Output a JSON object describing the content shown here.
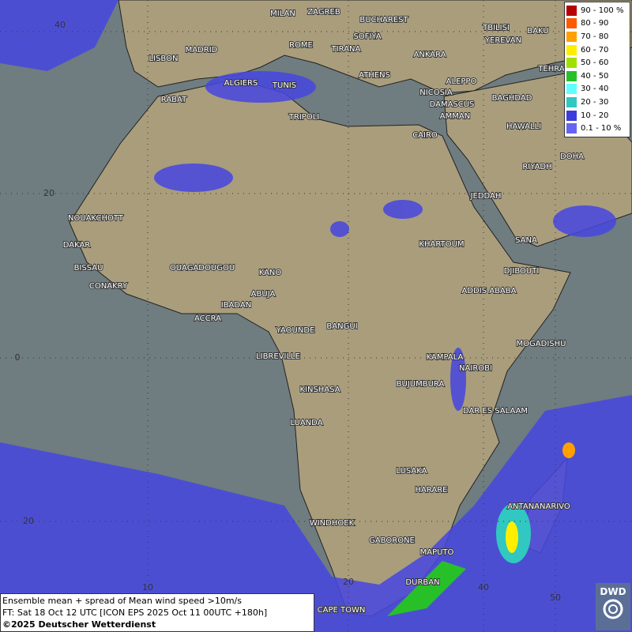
{
  "map": {
    "cities": [
      "MILAN",
      "ZAGREB",
      "BUCHAREST",
      "SOFIYA",
      "ROME",
      "TIRANA",
      "ANKARA",
      "MADRID",
      "LISBON",
      "ATHENS",
      "ALGIERS",
      "TUNIS",
      "ALEPPO",
      "TBILISI",
      "YEREVAN",
      "BAKU",
      "TEHRA",
      "RABAT",
      "NICOSIA",
      "BAGHDAD",
      "DAMASCUS",
      "TRIPOLI",
      "AMMAN",
      "HAWALLI",
      "CAIRO",
      "DOHA",
      "RIYADH",
      "JEDDAH",
      "NOUAKCHOTT",
      "SANA",
      "KHARTOUM",
      "DAKAR",
      "BISSAU",
      "OUAGADOUGOU",
      "KANO",
      "DJIBOUTI",
      "CONAKRY",
      "ABUJA",
      "ADDIS ABABA",
      "IBADAN",
      "ACCRA",
      "YAOUNDE",
      "BANGUI",
      "MOGADISHU",
      "LIBREVILLE",
      "KAMPALA",
      "NAIROBI",
      "KINSHASA",
      "BUJUMBURA",
      "DAR ES SALAAM",
      "LUANDA",
      "LUSAKA",
      "HARARE",
      "ANTANANARIVO",
      "WINDHOEK",
      "GABORONE",
      "MAPUTO",
      "DURBAN",
      "CAPE TOWN"
    ],
    "lat_labels": [
      "40",
      "20",
      "0",
      "20"
    ],
    "lon_labels": [
      "10",
      "20",
      "40",
      "50"
    ]
  },
  "legend": {
    "entries": [
      {
        "label": "90 - 100 %",
        "color": "#b40000"
      },
      {
        "label": "80 - 90",
        "color": "#ff5a00"
      },
      {
        "label": "70 - 80",
        "color": "#ffa000"
      },
      {
        "label": "60 - 70",
        "color": "#ffee00"
      },
      {
        "label": "50 - 60",
        "color": "#a0e000"
      },
      {
        "label": "40 - 50",
        "color": "#28c028"
      },
      {
        "label": "30 - 40",
        "color": "#60ffff"
      },
      {
        "label": "20 - 30",
        "color": "#30c8c0"
      },
      {
        "label": "10 - 20",
        "color": "#3c3cdc"
      },
      {
        "label": "0.1 - 10 %",
        "color": "#6464f0"
      }
    ]
  },
  "footer": {
    "lines": [
      "Ensemble mean + spread of Mean wind speed >10m/s",
      "FT: Sat 18 Oct 12 UTC [ICON EPS 2025 Oct 11 00UTC +180h]",
      "©2025 Deutscher Wetterdienst"
    ]
  },
  "logo": {
    "text": "DWD"
  }
}
